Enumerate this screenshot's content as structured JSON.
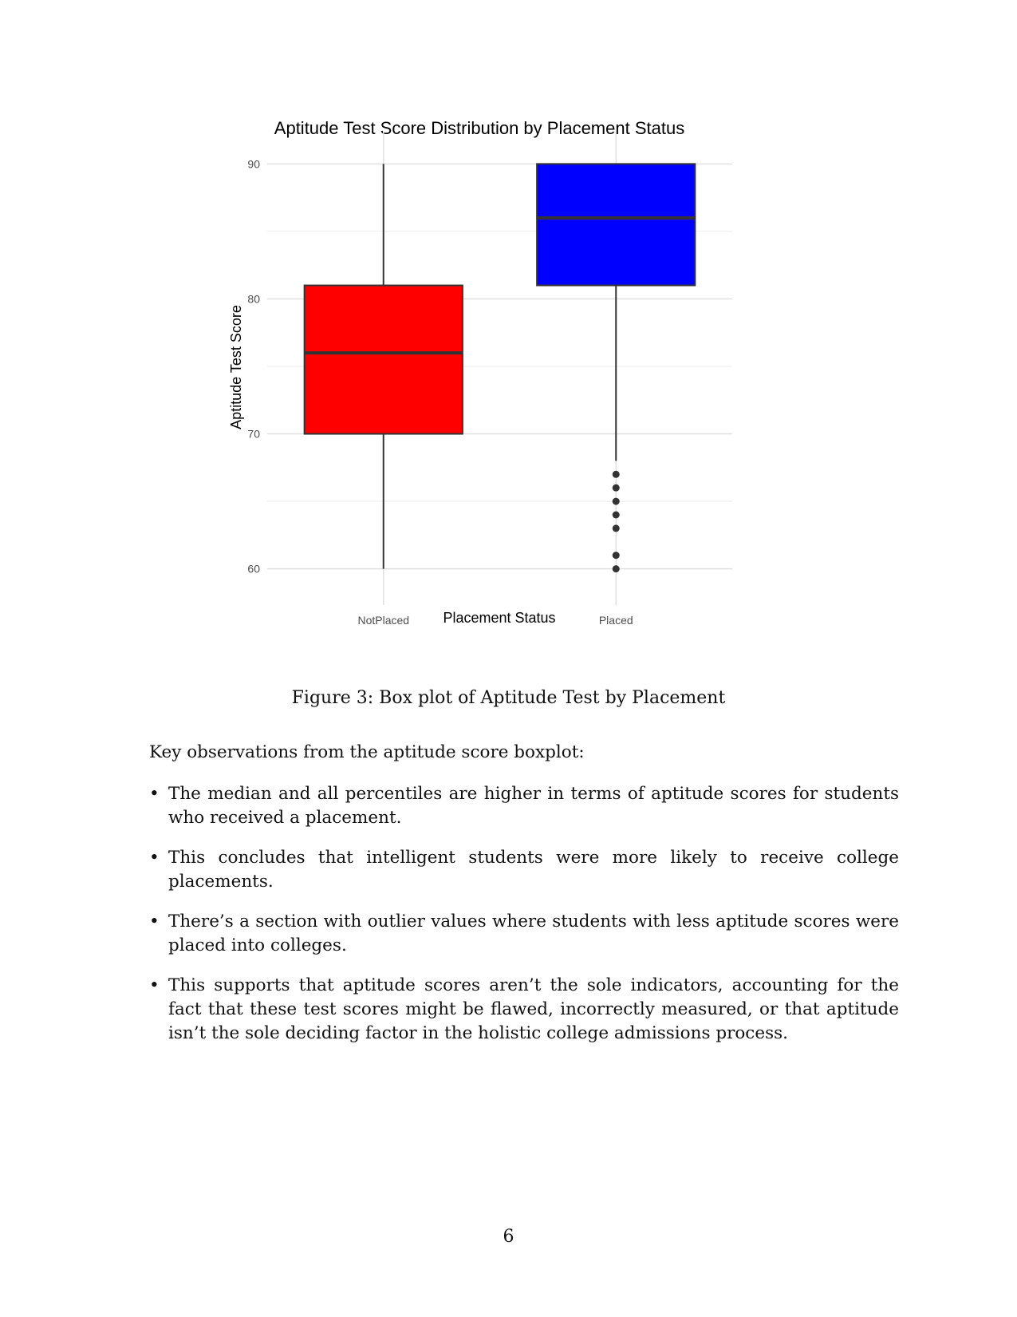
{
  "chart_data": {
    "type": "box",
    "title": "Aptitude Test Score Distribution by Placement Status",
    "xlabel": "Placement Status",
    "ylabel": "Aptitude Test Score",
    "ylim": [
      58.5,
      91.5
    ],
    "yticks": [
      "60",
      "70",
      "80",
      "90"
    ],
    "grid": true,
    "categories": [
      "NotPlaced",
      "Placed"
    ],
    "boxes": [
      {
        "category": "NotPlaced",
        "color": "#ff0000",
        "min": 60,
        "q1": 70,
        "median": 76,
        "q3": 81,
        "max": 90,
        "outliers": []
      },
      {
        "category": "Placed",
        "color": "#0000ff",
        "min": 68,
        "q1": 81,
        "median": 86,
        "q3": 90,
        "max": 90,
        "outliers": [
          67,
          66,
          65,
          64,
          63,
          61,
          60
        ]
      }
    ]
  },
  "caption": "Figure 3: Box plot of Aptitude Test by Placement",
  "intro": "Key observations from the aptitude score boxplot:",
  "bullets": [
    "The median and all percentiles are higher in terms of aptitude scores for students who received a placement.",
    "This concludes that intelligent students were more likely to receive college placements.",
    "There’s a section with outlier values where students with less aptitude scores were placed into colleges.",
    "This supports that aptitude scores aren’t the sole indicators, accounting for the fact that these test scores might be flawed, incorrectly measured, or that aptitude isn’t the sole deciding factor in the holistic college admissions process."
  ],
  "bullet_symbol": "•",
  "page_number": "6"
}
